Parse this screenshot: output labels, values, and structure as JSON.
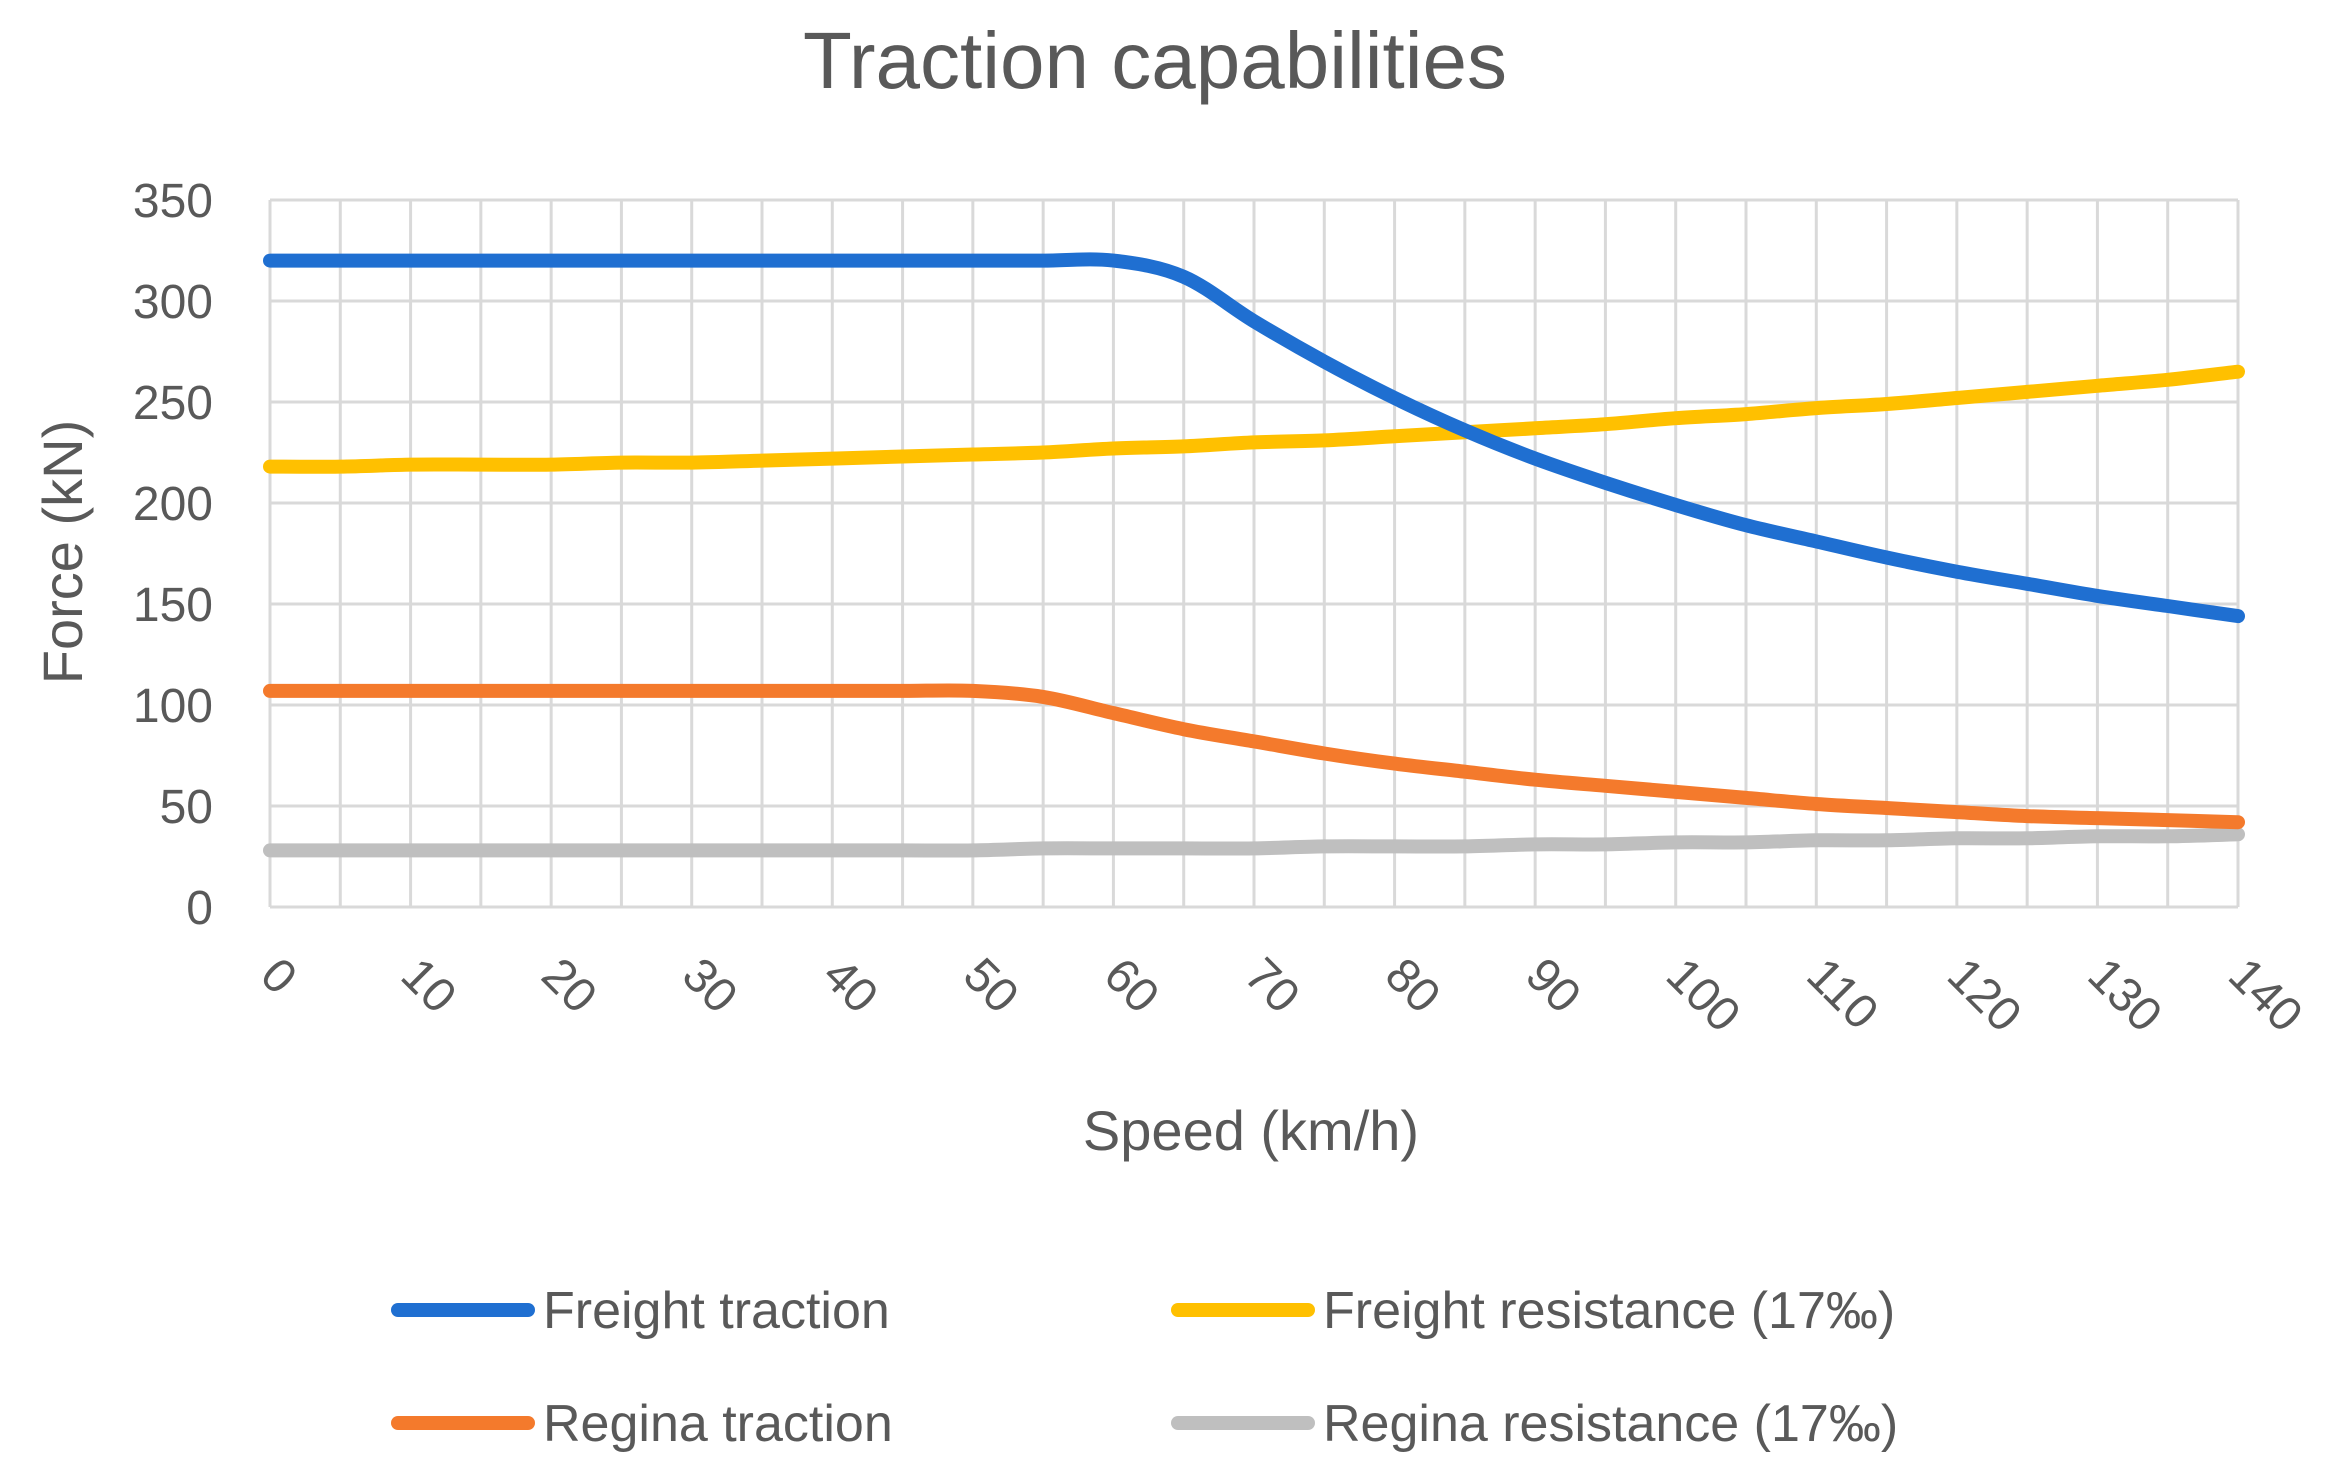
{
  "chart_data": {
    "type": "line",
    "title": "Traction capabilities",
    "xlabel": "Speed (km/h)",
    "ylabel": "Force (kN)",
    "xlim": [
      0,
      140
    ],
    "ylim": [
      0,
      350
    ],
    "xticks": [
      0,
      10,
      20,
      30,
      40,
      50,
      60,
      70,
      80,
      90,
      100,
      110,
      120,
      130,
      140
    ],
    "yticks": [
      0,
      50,
      100,
      150,
      200,
      250,
      300,
      350
    ],
    "grid": true,
    "legend_position": "bottom",
    "x": [
      0,
      5,
      10,
      15,
      20,
      25,
      30,
      35,
      40,
      45,
      50,
      55,
      60,
      65,
      70,
      75,
      80,
      85,
      90,
      95,
      100,
      105,
      110,
      115,
      120,
      125,
      130,
      135,
      140
    ],
    "series": [
      {
        "name": "Freight traction",
        "color": "#1f6fd1",
        "values": [
          320,
          320,
          320,
          320,
          320,
          320,
          320,
          320,
          320,
          320,
          320,
          320,
          320,
          312,
          290,
          270,
          252,
          236,
          222,
          210,
          199,
          189,
          181,
          173,
          166,
          160,
          154,
          149,
          144
        ]
      },
      {
        "name": "Freight resistance (17‰)",
        "color": "#ffc000",
        "values": [
          218,
          218,
          219,
          219,
          219,
          220,
          220,
          221,
          222,
          223,
          224,
          225,
          227,
          228,
          230,
          231,
          233,
          235,
          237,
          239,
          242,
          244,
          247,
          249,
          252,
          255,
          258,
          261,
          265
        ]
      },
      {
        "name": "Regina traction",
        "color": "#f47a2c",
        "values": [
          107,
          107,
          107,
          107,
          107,
          107,
          107,
          107,
          107,
          107,
          107,
          104,
          96,
          88,
          82,
          76,
          71,
          67,
          63,
          60,
          57,
          54,
          51,
          49,
          47,
          45,
          44,
          43,
          42
        ]
      },
      {
        "name": "Regina resistance (17‰)",
        "color": "#bfbfbf",
        "values": [
          28,
          28,
          28,
          28,
          28,
          28,
          28,
          28,
          28,
          28,
          28,
          29,
          29,
          29,
          29,
          30,
          30,
          30,
          31,
          31,
          32,
          32,
          33,
          33,
          34,
          34,
          35,
          35,
          36
        ]
      }
    ]
  }
}
